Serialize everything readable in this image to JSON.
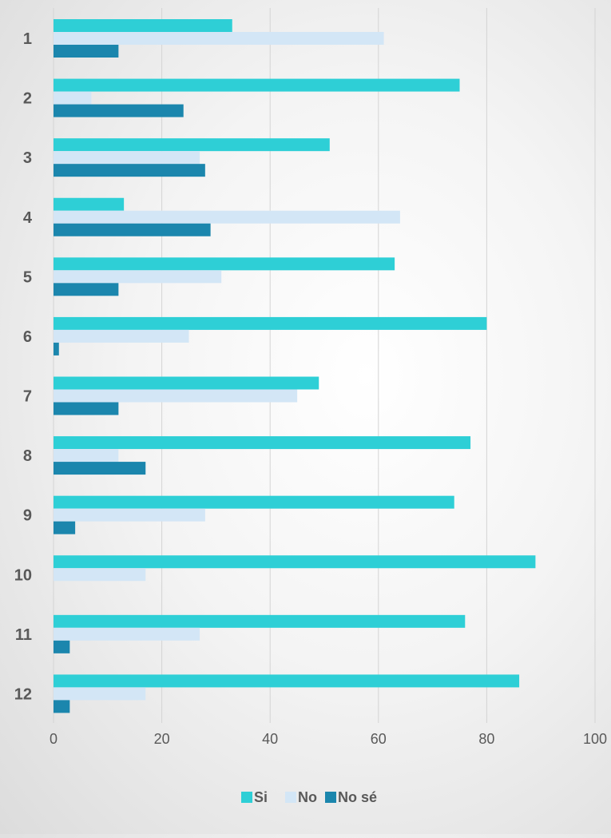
{
  "chart_data": {
    "type": "bar",
    "orientation": "horizontal",
    "categories": [
      "1",
      "2",
      "3",
      "4",
      "5",
      "6",
      "7",
      "8",
      "9",
      "10",
      "11",
      "12"
    ],
    "series": [
      {
        "name": "Si",
        "color": "#2ecfd6",
        "values": [
          33,
          75,
          51,
          13,
          63,
          80,
          49,
          77,
          74,
          89,
          76,
          86
        ]
      },
      {
        "name": "No",
        "color": "#d3e6f6",
        "values": [
          61,
          7,
          27,
          64,
          31,
          25,
          45,
          12,
          28,
          17,
          27,
          17
        ]
      },
      {
        "name": "No sé",
        "color": "#1b86ad",
        "values": [
          12,
          24,
          28,
          29,
          12,
          1,
          12,
          17,
          4,
          0,
          3,
          3
        ]
      }
    ],
    "x_ticks": [
      "0",
      "20",
      "40",
      "60",
      "80",
      "100"
    ],
    "xlim": [
      0,
      100
    ],
    "grid": true,
    "legend_position": "bottom"
  }
}
